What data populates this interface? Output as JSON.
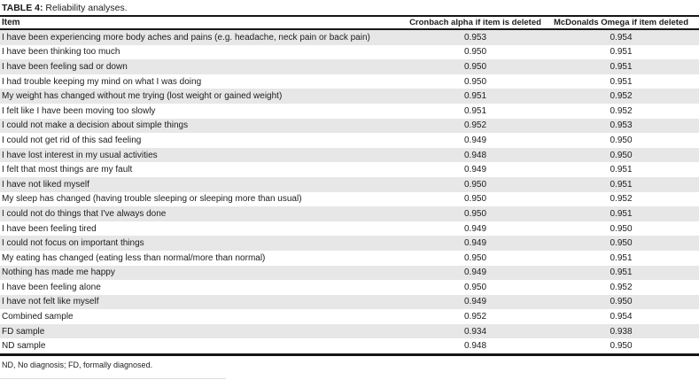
{
  "title": {
    "label": "TABLE 4:",
    "caption": "Reliability analyses."
  },
  "table": {
    "columns": [
      "Item",
      "Cronbach alpha if item is deleted",
      "McDonalds Omega if item deleted"
    ],
    "rows": [
      {
        "item": "I have been experiencing more body aches and pains (e.g. headache, neck pain or back pain)",
        "cronbach": "0.953",
        "omega": "0.954"
      },
      {
        "item": "I have been thinking too much",
        "cronbach": "0.950",
        "omega": "0.951"
      },
      {
        "item": "I have been feeling sad or down",
        "cronbach": "0.950",
        "omega": "0.951"
      },
      {
        "item": "I had trouble keeping my mind on what I was doing",
        "cronbach": "0.950",
        "omega": "0.951"
      },
      {
        "item": "My weight has changed without me trying (lost weight or gained weight)",
        "cronbach": "0.951",
        "omega": "0.952"
      },
      {
        "item": "I felt like I have been moving too slowly",
        "cronbach": "0.951",
        "omega": "0.952"
      },
      {
        "item": "I could not make a decision about simple things",
        "cronbach": "0.952",
        "omega": "0.953"
      },
      {
        "item": "I could not get rid of this sad feeling",
        "cronbach": "0.949",
        "omega": "0.950"
      },
      {
        "item": "I have lost interest in my usual activities",
        "cronbach": "0.948",
        "omega": "0.950"
      },
      {
        "item": "I felt that most things are my fault",
        "cronbach": "0.949",
        "omega": "0.951"
      },
      {
        "item": "I have not liked myself",
        "cronbach": "0.950",
        "omega": "0.951"
      },
      {
        "item": "My sleep has changed (having trouble sleeping or sleeping more than usual)",
        "cronbach": "0.950",
        "omega": "0.952"
      },
      {
        "item": "I could not do things that I've always done",
        "cronbach": "0.950",
        "omega": "0.951"
      },
      {
        "item": "I have been feeling tired",
        "cronbach": "0.949",
        "omega": "0.950"
      },
      {
        "item": "I could not focus on important things",
        "cronbach": "0.949",
        "omega": "0.950"
      },
      {
        "item": "My eating has changed (eating less than normal/more than normal)",
        "cronbach": "0.950",
        "omega": "0.951"
      },
      {
        "item": "Nothing has made me happy",
        "cronbach": "0.949",
        "omega": "0.951"
      },
      {
        "item": "I have been feeling alone",
        "cronbach": "0.950",
        "omega": "0.952"
      },
      {
        "item": "I have not felt like myself",
        "cronbach": "0.949",
        "omega": "0.950"
      },
      {
        "item": "Combined sample",
        "cronbach": "0.952",
        "omega": "0.954"
      },
      {
        "item": "FD sample",
        "cronbach": "0.934",
        "omega": "0.938"
      },
      {
        "item": "ND sample",
        "cronbach": "0.948",
        "omega": "0.950"
      }
    ]
  },
  "footnote": "ND, No diagnosis; FD, formally diagnosed.",
  "colors": {
    "row_shade": "#e7e7e7",
    "rule": "#161616",
    "text": "#1c1c1c"
  }
}
